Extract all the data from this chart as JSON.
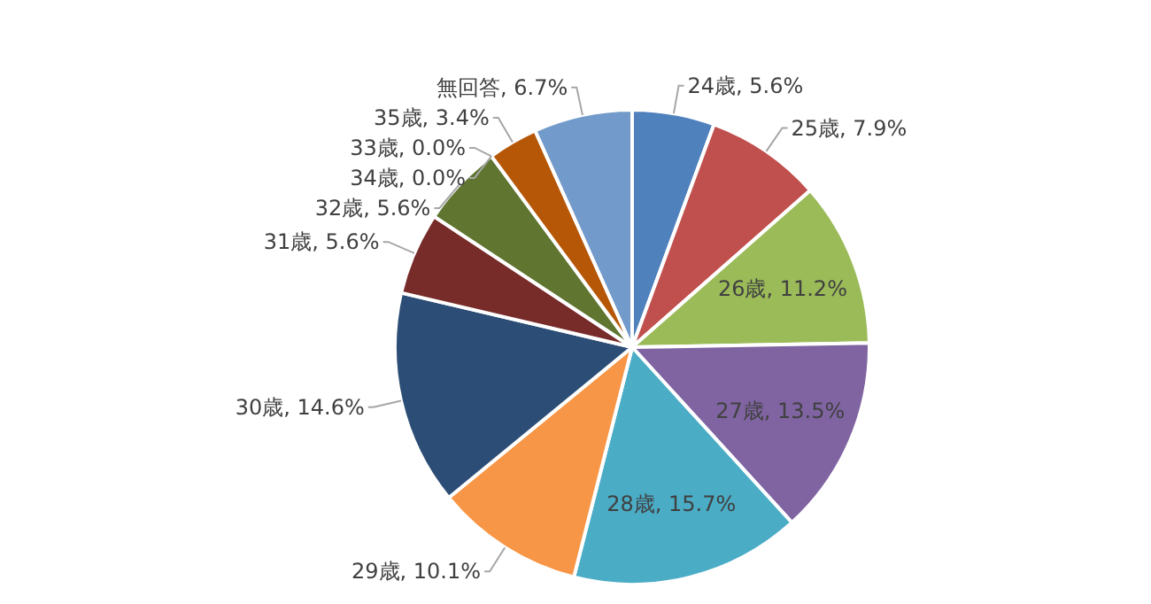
{
  "chart_data": {
    "type": "pie",
    "categories": [
      "24歳",
      "25歳",
      "26歳",
      "27歳",
      "28歳",
      "29歳",
      "30歳",
      "31歳",
      "32歳",
      "33歳",
      "34歳",
      "35歳",
      "無回答"
    ],
    "values": [
      5.6,
      7.9,
      11.2,
      13.5,
      15.7,
      10.1,
      14.6,
      5.6,
      5.6,
      0.0,
      0.0,
      3.4,
      6.7
    ],
    "value_labels": [
      "5.6%",
      "7.9%",
      "11.2%",
      "13.5%",
      "15.7%",
      "10.1%",
      "14.6%",
      "5.6%",
      "5.6%",
      "0.0%",
      "0.0%",
      "3.4%",
      "6.7%"
    ],
    "colors": [
      "#4f81bd",
      "#c0504d",
      "#9bbb59",
      "#8064a2",
      "#4bacc6",
      "#f79646",
      "#2c4d75",
      "#772c2a",
      "#5f7530",
      null,
      null,
      "#b65708",
      "#729aca"
    ]
  }
}
